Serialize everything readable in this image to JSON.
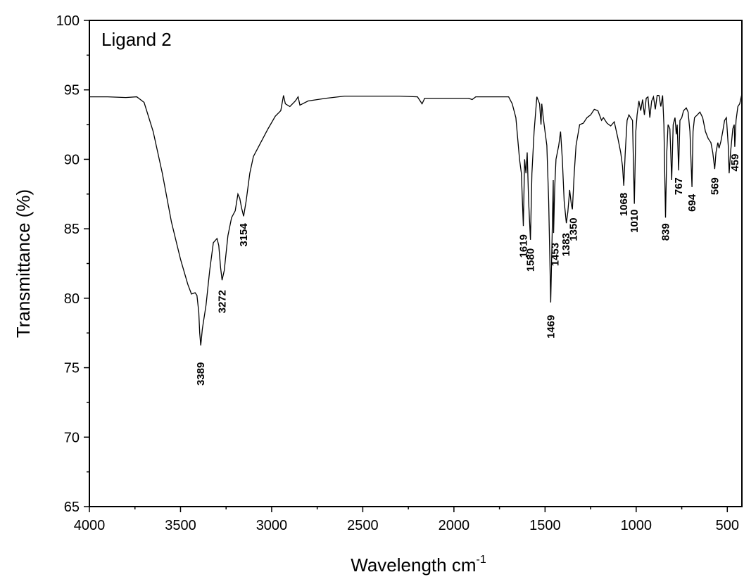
{
  "chart_data": {
    "type": "line",
    "title": "",
    "xlabel": "Wavelength cm",
    "xlabel_sup": "-1",
    "ylabel": "Transmittance (%)",
    "xlim": [
      4000,
      420
    ],
    "ylim": [
      65,
      100
    ],
    "x_reversed": true,
    "grid": false,
    "x_ticks": [
      4000,
      3500,
      3000,
      2500,
      2000,
      1500,
      1000,
      500
    ],
    "y_ticks": [
      65,
      70,
      75,
      80,
      85,
      90,
      95,
      100
    ],
    "line_color": "#000000",
    "series": [
      {
        "name": "Ligand 2",
        "points": [
          [
            4000,
            94.5
          ],
          [
            3900,
            94.5
          ],
          [
            3800,
            94.45
          ],
          [
            3740,
            94.5
          ],
          [
            3700,
            94.1
          ],
          [
            3650,
            92.0
          ],
          [
            3600,
            89.0
          ],
          [
            3550,
            85.5
          ],
          [
            3500,
            82.8
          ],
          [
            3460,
            81.0
          ],
          [
            3440,
            80.3
          ],
          [
            3420,
            80.4
          ],
          [
            3410,
            80.2
          ],
          [
            3400,
            79.0
          ],
          [
            3395,
            77.5
          ],
          [
            3389,
            76.6
          ],
          [
            3380,
            77.8
          ],
          [
            3360,
            79.5
          ],
          [
            3340,
            82.0
          ],
          [
            3320,
            84.0
          ],
          [
            3300,
            84.3
          ],
          [
            3290,
            83.8
          ],
          [
            3280,
            82.2
          ],
          [
            3272,
            81.3
          ],
          [
            3260,
            82.0
          ],
          [
            3240,
            84.5
          ],
          [
            3220,
            85.8
          ],
          [
            3200,
            86.3
          ],
          [
            3185,
            87.5
          ],
          [
            3175,
            87.2
          ],
          [
            3165,
            86.5
          ],
          [
            3154,
            85.9
          ],
          [
            3140,
            87.0
          ],
          [
            3120,
            89.0
          ],
          [
            3100,
            90.2
          ],
          [
            3060,
            91.2
          ],
          [
            3020,
            92.2
          ],
          [
            2980,
            93.1
          ],
          [
            2950,
            93.5
          ],
          [
            2935,
            94.6
          ],
          [
            2925,
            94.0
          ],
          [
            2900,
            93.8
          ],
          [
            2870,
            94.2
          ],
          [
            2855,
            94.5
          ],
          [
            2845,
            93.9
          ],
          [
            2800,
            94.2
          ],
          [
            2700,
            94.4
          ],
          [
            2600,
            94.55
          ],
          [
            2500,
            94.55
          ],
          [
            2400,
            94.55
          ],
          [
            2300,
            94.55
          ],
          [
            2200,
            94.5
          ],
          [
            2175,
            94.0
          ],
          [
            2160,
            94.4
          ],
          [
            2000,
            94.4
          ],
          [
            1920,
            94.4
          ],
          [
            1900,
            94.3
          ],
          [
            1880,
            94.5
          ],
          [
            1800,
            94.5
          ],
          [
            1740,
            94.5
          ],
          [
            1700,
            94.5
          ],
          [
            1680,
            94.0
          ],
          [
            1660,
            93.0
          ],
          [
            1640,
            90.0
          ],
          [
            1630,
            89.0
          ],
          [
            1619,
            85.2
          ],
          [
            1612,
            90.0
          ],
          [
            1605,
            89.0
          ],
          [
            1598,
            90.5
          ],
          [
            1590,
            87.0
          ],
          [
            1580,
            84.2
          ],
          [
            1572,
            89.0
          ],
          [
            1560,
            92.0
          ],
          [
            1545,
            94.5
          ],
          [
            1530,
            94.0
          ],
          [
            1522,
            92.5
          ],
          [
            1518,
            94.0
          ],
          [
            1510,
            93.0
          ],
          [
            1500,
            92.0
          ],
          [
            1490,
            91.0
          ],
          [
            1480,
            87.0
          ],
          [
            1469,
            79.7
          ],
          [
            1462,
            84.0
          ],
          [
            1455,
            88.5
          ],
          [
            1453,
            84.7
          ],
          [
            1447,
            88.0
          ],
          [
            1440,
            90.0
          ],
          [
            1425,
            91.0
          ],
          [
            1415,
            92.0
          ],
          [
            1405,
            90.0
          ],
          [
            1395,
            87.0
          ],
          [
            1383,
            85.4
          ],
          [
            1375,
            86.2
          ],
          [
            1365,
            87.8
          ],
          [
            1356,
            86.8
          ],
          [
            1350,
            86.4
          ],
          [
            1340,
            89.0
          ],
          [
            1330,
            91.0
          ],
          [
            1310,
            92.5
          ],
          [
            1290,
            92.6
          ],
          [
            1270,
            93.0
          ],
          [
            1250,
            93.2
          ],
          [
            1230,
            93.6
          ],
          [
            1210,
            93.5
          ],
          [
            1190,
            92.8
          ],
          [
            1180,
            93.0
          ],
          [
            1160,
            92.6
          ],
          [
            1140,
            92.4
          ],
          [
            1120,
            92.7
          ],
          [
            1100,
            91.5
          ],
          [
            1085,
            90.5
          ],
          [
            1075,
            89.5
          ],
          [
            1068,
            88.1
          ],
          [
            1060,
            90.5
          ],
          [
            1050,
            92.8
          ],
          [
            1040,
            93.2
          ],
          [
            1030,
            93.0
          ],
          [
            1020,
            92.8
          ],
          [
            1010,
            86.8
          ],
          [
            1002,
            92.0
          ],
          [
            995,
            93.2
          ],
          [
            985,
            94.2
          ],
          [
            975,
            93.5
          ],
          [
            965,
            94.3
          ],
          [
            955,
            93.2
          ],
          [
            945,
            94.4
          ],
          [
            935,
            94.5
          ],
          [
            925,
            93.0
          ],
          [
            915,
            94.2
          ],
          [
            905,
            94.5
          ],
          [
            895,
            93.6
          ],
          [
            885,
            94.6
          ],
          [
            875,
            94.6
          ],
          [
            865,
            93.8
          ],
          [
            855,
            94.6
          ],
          [
            848,
            92.5
          ],
          [
            839,
            85.8
          ],
          [
            832,
            90.5
          ],
          [
            825,
            92.5
          ],
          [
            815,
            92.2
          ],
          [
            805,
            88.5
          ],
          [
            797,
            92.5
          ],
          [
            787,
            93.0
          ],
          [
            780,
            91.8
          ],
          [
            775,
            92.5
          ],
          [
            767,
            89.2
          ],
          [
            760,
            92.8
          ],
          [
            750,
            93.0
          ],
          [
            740,
            93.5
          ],
          [
            725,
            93.7
          ],
          [
            715,
            93.4
          ],
          [
            705,
            92.0
          ],
          [
            694,
            88.0
          ],
          [
            688,
            92.0
          ],
          [
            680,
            93.0
          ],
          [
            665,
            93.2
          ],
          [
            650,
            93.4
          ],
          [
            635,
            93.0
          ],
          [
            620,
            92.0
          ],
          [
            605,
            91.5
          ],
          [
            590,
            91.2
          ],
          [
            580,
            90.5
          ],
          [
            569,
            89.3
          ],
          [
            562,
            90.5
          ],
          [
            552,
            91.2
          ],
          [
            545,
            90.8
          ],
          [
            535,
            91.3
          ],
          [
            525,
            92.0
          ],
          [
            515,
            92.8
          ],
          [
            505,
            93.0
          ],
          [
            495,
            91.0
          ],
          [
            490,
            89.0
          ],
          [
            482,
            90.5
          ],
          [
            470,
            92.2
          ],
          [
            462,
            92.5
          ],
          [
            459,
            90.9
          ],
          [
            452,
            92.8
          ],
          [
            442,
            93.8
          ],
          [
            432,
            94.0
          ],
          [
            420,
            94.7
          ]
        ]
      }
    ],
    "annotations": [
      {
        "text": "3389",
        "x": 3389,
        "y": 75.4
      },
      {
        "text": "3272",
        "x": 3272,
        "y": 80.6
      },
      {
        "text": "3154",
        "x": 3154,
        "y": 85.4
      },
      {
        "text": "1619",
        "x": 1619,
        "y": 84.6
      },
      {
        "text": "1580",
        "x": 1580,
        "y": 83.6
      },
      {
        "text": "1469",
        "x": 1469,
        "y": 78.8
      },
      {
        "text": "1453",
        "x": 1445,
        "y": 84.0
      },
      {
        "text": "1383",
        "x": 1385,
        "y": 84.7
      },
      {
        "text": "1350",
        "x": 1345,
        "y": 85.8
      },
      {
        "text": "1068",
        "x": 1068,
        "y": 87.6
      },
      {
        "text": "1010",
        "x": 1010,
        "y": 86.4
      },
      {
        "text": "839",
        "x": 839,
        "y": 85.4
      },
      {
        "text": "767",
        "x": 767,
        "y": 88.7
      },
      {
        "text": "694",
        "x": 694,
        "y": 87.5
      },
      {
        "text": "569",
        "x": 569,
        "y": 88.7
      },
      {
        "text": "459",
        "x": 459,
        "y": 90.4
      }
    ]
  }
}
